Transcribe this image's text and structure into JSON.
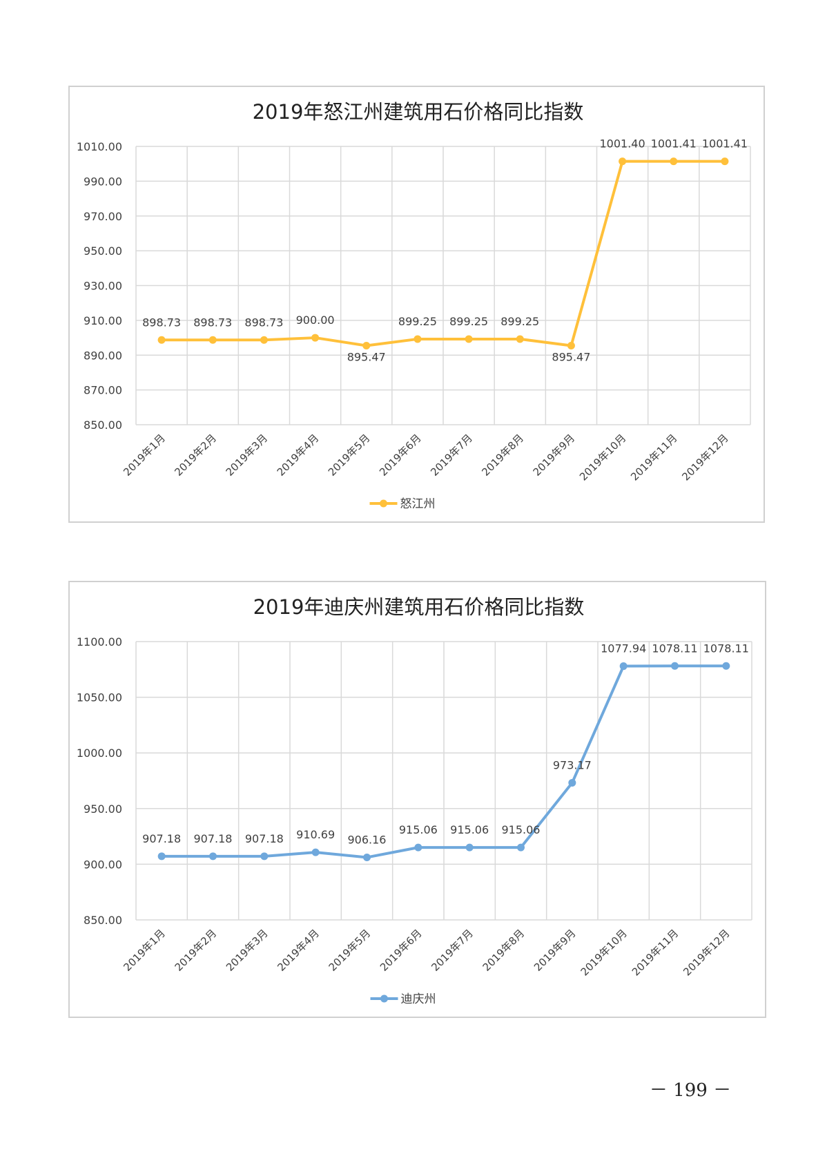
{
  "chart_data": [
    {
      "type": "line",
      "title": "2019年怒江州建筑用石价格同比指数",
      "categories": [
        "2019年1月",
        "2019年2月",
        "2019年3月",
        "2019年4月",
        "2019年5月",
        "2019年6月",
        "2019年7月",
        "2019年8月",
        "2019年9月",
        "2019年10月",
        "2019年11月",
        "2019年12月"
      ],
      "series": [
        {
          "name": "怒江州",
          "color": "#FFC03A",
          "values": [
            898.73,
            898.73,
            898.73,
            900.0,
            895.47,
            899.25,
            899.25,
            899.25,
            895.47,
            1001.4,
            1001.41,
            1001.41
          ],
          "labels": [
            "898.73",
            "898.73",
            "898.73",
            "900.00",
            "895.47",
            "899.25",
            "899.25",
            "899.25",
            "895.47",
            "1001.40",
            "1001.41",
            "1001.41"
          ]
        }
      ],
      "ylim": [
        850,
        1010
      ],
      "yticks": [
        "850.00",
        "870.00",
        "890.00",
        "910.00",
        "930.00",
        "950.00",
        "970.00",
        "990.00",
        "1010.00"
      ],
      "ytick_values": [
        850,
        870,
        890,
        910,
        930,
        950,
        970,
        990,
        1010
      ],
      "grid": true,
      "legend": "bottom"
    },
    {
      "type": "line",
      "title": "2019年迪庆州建筑用石价格同比指数",
      "categories": [
        "2019年1月",
        "2019年2月",
        "2019年3月",
        "2019年4月",
        "2019年5月",
        "2019年6月",
        "2019年7月",
        "2019年8月",
        "2019年9月",
        "2019年10月",
        "2019年11月",
        "2019年12月"
      ],
      "series": [
        {
          "name": "迪庆州",
          "color": "#6FA8DC",
          "values": [
            907.18,
            907.18,
            907.18,
            910.69,
            906.16,
            915.06,
            915.06,
            915.06,
            973.17,
            1077.94,
            1078.11,
            1078.11
          ],
          "labels": [
            "907.18",
            "907.18",
            "907.18",
            "910.69",
            "906.16",
            "915.06",
            "915.06",
            "915.06",
            "973.17",
            "1077.94",
            "1078.11",
            "1078.11"
          ]
        }
      ],
      "ylim": [
        850,
        1100
      ],
      "yticks": [
        "850.00",
        "900.00",
        "950.00",
        "1000.00",
        "1050.00",
        "1100.00"
      ],
      "ytick_values": [
        850,
        900,
        950,
        1000,
        1050,
        1100
      ],
      "grid": true,
      "legend": "bottom"
    }
  ],
  "page_number": "－ 199 －"
}
